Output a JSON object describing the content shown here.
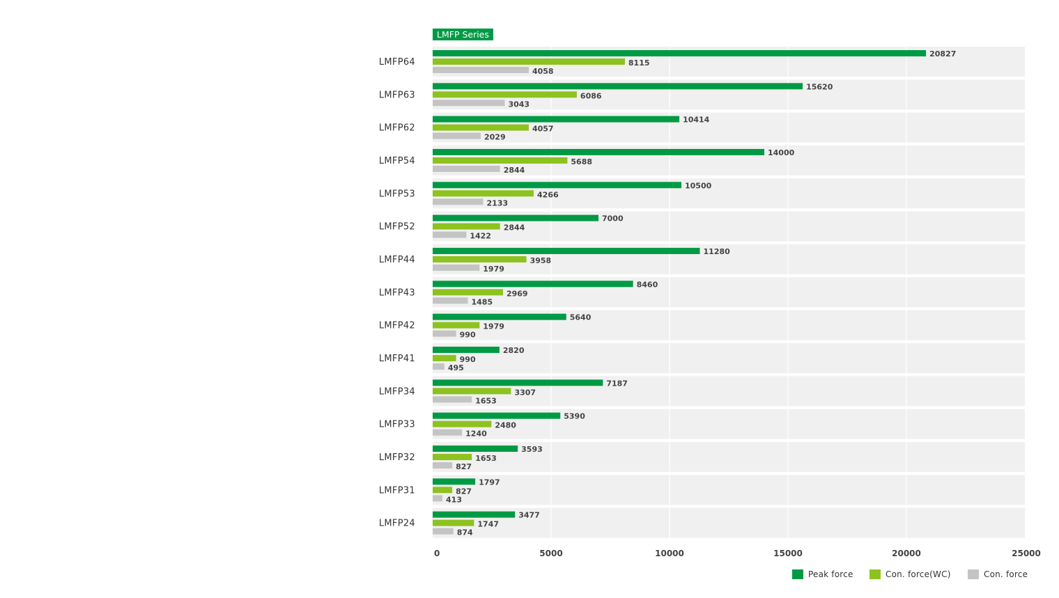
{
  "chart_data": {
    "type": "bar",
    "orientation": "horizontal",
    "title": "LMFP Series",
    "categories": [
      "LMFP64",
      "LMFP63",
      "LMFP62",
      "LMFP54",
      "LMFP53",
      "LMFP52",
      "LMFP44",
      "LMFP43",
      "LMFP42",
      "LMFP41",
      "LMFP34",
      "LMFP33",
      "LMFP32",
      "LMFP31",
      "LMFP24"
    ],
    "series": [
      {
        "name": "Peak force",
        "color": "#009a44",
        "values": [
          20827,
          15620,
          10414,
          14000,
          10500,
          7000,
          11280,
          8460,
          5640,
          2820,
          7187,
          5390,
          3593,
          1797,
          3477
        ]
      },
      {
        "name": "Con. force(WC)",
        "color": "#8dc21f",
        "values": [
          8115,
          6086,
          4057,
          5688,
          4266,
          2844,
          3958,
          2969,
          1979,
          990,
          3307,
          2480,
          1653,
          827,
          1747
        ]
      },
      {
        "name": "Con. force",
        "color": "#c4c4c4",
        "values": [
          4058,
          3043,
          2029,
          2844,
          2133,
          1422,
          1979,
          1485,
          990,
          495,
          1653,
          1240,
          827,
          413,
          874
        ]
      }
    ],
    "xlim": [
      0,
      25000
    ],
    "xticks": [
      "0",
      "5000",
      "10000",
      "15000",
      "20000",
      "25000"
    ],
    "grid": true,
    "legend_position": "bottom-right"
  }
}
